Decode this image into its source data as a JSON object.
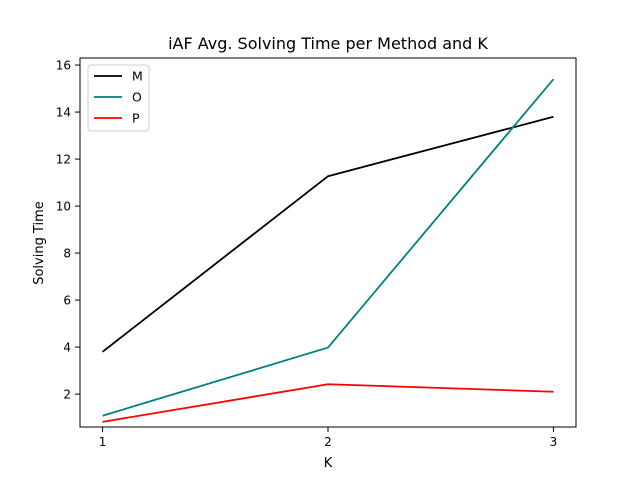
{
  "chart_data": {
    "type": "line",
    "title": "iAF Avg. Solving Time per Method and K",
    "xlabel": "K",
    "ylabel": "Solving Time",
    "x": [
      1,
      2,
      3
    ],
    "x_ticks": [
      "1",
      "2",
      "3"
    ],
    "y_ticks": [
      "2",
      "4",
      "6",
      "8",
      "10",
      "12",
      "14",
      "16"
    ],
    "xlim": [
      0.9,
      3.1
    ],
    "ylim": [
      0.6,
      16.3
    ],
    "grid": false,
    "legend_position": "top-left",
    "series": [
      {
        "name": "M",
        "color": "#000000",
        "values": [
          3.8,
          11.27,
          13.8
        ]
      },
      {
        "name": "O",
        "color": "#008080",
        "values": [
          1.08,
          3.98,
          15.4
        ]
      },
      {
        "name": "P",
        "color": "#ff0000",
        "values": [
          0.82,
          2.42,
          2.1
        ]
      }
    ]
  }
}
